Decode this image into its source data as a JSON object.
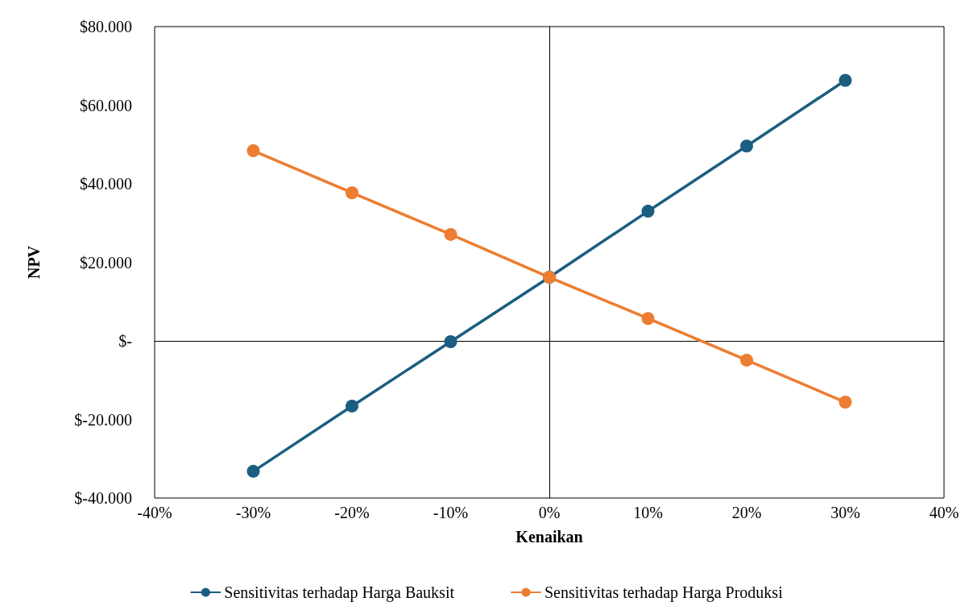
{
  "chart_data": {
    "type": "line",
    "xlabel": "Kenaikan",
    "ylabel": "NPV",
    "x": [
      -30,
      -20,
      -10,
      0,
      10,
      20,
      30
    ],
    "series": [
      {
        "name": "Sensitivitas terhadap Harga Bauksit",
        "color": "#1b5e7f",
        "values": [
          -33200,
          -16600,
          -200,
          16200,
          33000,
          49600,
          66300
        ]
      },
      {
        "name": "Sensitivitas terhadap Harga Produksi",
        "color": "#ed7d31",
        "values": [
          48400,
          37700,
          27100,
          16200,
          5700,
          -4900,
          -15600
        ]
      }
    ],
    "xlim": [
      -40,
      40
    ],
    "xticks": [
      {
        "value": -40,
        "label": "-40%"
      },
      {
        "value": -30,
        "label": "-30%"
      },
      {
        "value": -20,
        "label": "-20%"
      },
      {
        "value": -10,
        "label": "-10%"
      },
      {
        "value": 0,
        "label": "0%"
      },
      {
        "value": 10,
        "label": "10%"
      },
      {
        "value": 20,
        "label": "20%"
      },
      {
        "value": 30,
        "label": "30%"
      },
      {
        "value": 40,
        "label": "40%"
      }
    ],
    "ylim": [
      -40000,
      80000
    ],
    "yticks": [
      {
        "value": -40000,
        "label": "$-40.000"
      },
      {
        "value": -20000,
        "label": "$-20.000"
      },
      {
        "value": 0,
        "label": "$-"
      },
      {
        "value": 20000,
        "label": "$20.000"
      },
      {
        "value": 40000,
        "label": "$40.000"
      },
      {
        "value": 60000,
        "label": "$60.000"
      },
      {
        "value": 80000,
        "label": "$80.000"
      }
    ],
    "marker": "circle",
    "line_style": "solid",
    "legend": "bottom"
  }
}
